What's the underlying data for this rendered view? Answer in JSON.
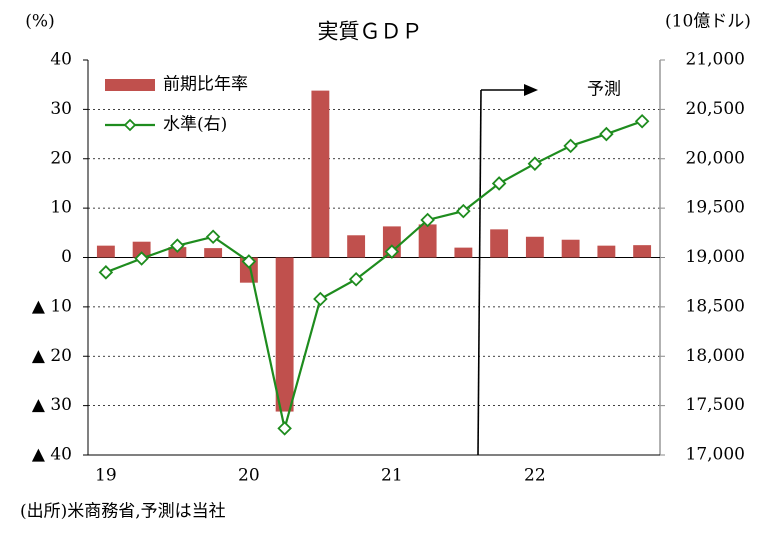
{
  "chart_data": {
    "type": "bar+line",
    "title": "実質ＧＤＰ",
    "y_label": "(%)",
    "y2_label": "(10億ドル)",
    "annotation": "予測",
    "source": "(出所)米商務省,予測は当社",
    "categories": [
      "19",
      null,
      null,
      null,
      "20",
      null,
      null,
      null,
      "21",
      null,
      null,
      null,
      "22",
      null,
      null,
      null
    ],
    "series": [
      {
        "name": "前期比年率",
        "type": "bar",
        "color": "#c0504d",
        "axis": "y",
        "values": [
          2.4,
          3.2,
          2.1,
          1.9,
          -5.1,
          -31.2,
          33.8,
          4.5,
          6.3,
          6.7,
          2.0,
          5.7,
          4.2,
          3.6,
          2.4,
          2.5
        ]
      },
      {
        "name": "水準(右)",
        "type": "line",
        "color": "#1e8c1e",
        "axis": "y2",
        "values": [
          18850,
          18990,
          19120,
          19210,
          18960,
          17270,
          18580,
          18780,
          19060,
          19380,
          19470,
          19750,
          19950,
          20130,
          20250,
          20380
        ]
      }
    ],
    "ylim": [
      -40,
      40
    ],
    "yticks": [
      40,
      30,
      20,
      10,
      0,
      {
        "value": -10,
        "label": "▲ 10"
      },
      {
        "value": -20,
        "label": "▲ 20"
      },
      {
        "value": -30,
        "label": "▲ 30"
      },
      {
        "value": -40,
        "label": "▲ 40"
      }
    ],
    "y2lim": [
      17000,
      21000
    ],
    "y2ticks": [
      {
        "value": 21000,
        "label": "21,000"
      },
      {
        "value": 20500,
        "label": "20,500"
      },
      {
        "value": 20000,
        "label": "20,000"
      },
      {
        "value": 19500,
        "label": "19,500"
      },
      {
        "value": 19000,
        "label": "19,000"
      },
      {
        "value": 18500,
        "label": "18,500"
      },
      {
        "value": 18000,
        "label": "18,000"
      },
      {
        "value": 17500,
        "label": "17,500"
      },
      {
        "value": 17000,
        "label": "17,000"
      }
    ],
    "grid": true,
    "legend": "top-left"
  }
}
